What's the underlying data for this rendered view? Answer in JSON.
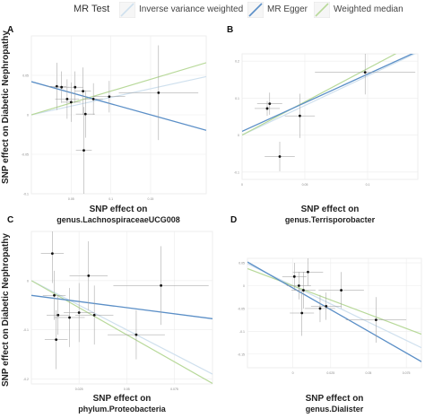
{
  "legend": {
    "title": "MR Test",
    "items": [
      {
        "label": "Inverse variance weighted",
        "color": "#cfe0ee"
      },
      {
        "label": "MR Egger",
        "color": "#5b8fc7"
      },
      {
        "label": "Weighted median",
        "color": "#b8d99a"
      }
    ]
  },
  "y_axis_label": "SNP effect on Diabetic Nephropathy",
  "chart_data": [
    {
      "panel": "A",
      "type": "scatter",
      "xlabel": "SNP effect on\ngenus.LachnospiraceaeUCG008",
      "ylabel": "SNP effect on Diabetic Nephropathy",
      "xlim": [
        0,
        0.22
      ],
      "ylim": [
        -0.1,
        0.1
      ],
      "xticks": [
        0.05,
        0.1,
        0.15
      ],
      "yticks": [
        -0.1,
        -0.05,
        0,
        0.05
      ],
      "grid": true,
      "points": [
        {
          "x": 0.032,
          "y": 0.036,
          "xerr": 0.012,
          "yerr": 0.03
        },
        {
          "x": 0.038,
          "y": 0.035,
          "xerr": 0.01,
          "yerr": 0.02
        },
        {
          "x": 0.045,
          "y": 0.02,
          "xerr": 0.015,
          "yerr": 0.025
        },
        {
          "x": 0.05,
          "y": 0.016,
          "xerr": 0.012,
          "yerr": 0.025
        },
        {
          "x": 0.055,
          "y": 0.035,
          "xerr": 0.01,
          "yerr": 0.02
        },
        {
          "x": 0.065,
          "y": 0.03,
          "xerr": 0.01,
          "yerr": 0.03
        },
        {
          "x": 0.068,
          "y": 0.001,
          "xerr": 0.012,
          "yerr": 0.03
        },
        {
          "x": 0.066,
          "y": -0.045,
          "xerr": 0.01,
          "yerr": 0.055
        },
        {
          "x": 0.078,
          "y": 0.02,
          "xerr": 0.012,
          "yerr": 0.02
        },
        {
          "x": 0.098,
          "y": 0.023,
          "xerr": 0.02,
          "yerr": 0.02
        },
        {
          "x": 0.16,
          "y": 0.028,
          "xerr": 0.05,
          "yerr": 0.06
        }
      ],
      "lines": {
        "ivw": {
          "intercept": 0.0,
          "slope": 0.22
        },
        "egger": {
          "intercept": 0.042,
          "slope": -0.28
        },
        "median": {
          "intercept": 0.0,
          "slope": 0.3
        }
      }
    },
    {
      "panel": "B",
      "type": "scatter",
      "xlabel": "SNP effect on\ngenus.Terrisporobacter",
      "ylabel": "",
      "xlim": [
        0,
        0.14
      ],
      "ylim": [
        -0.12,
        0.22
      ],
      "xticks": [
        0,
        0.05,
        0.1
      ],
      "yticks": [
        -0.1,
        0,
        0.1,
        0.2
      ],
      "grid": true,
      "points": [
        {
          "x": 0.022,
          "y": 0.085,
          "xerr": 0.01,
          "yerr": 0.03
        },
        {
          "x": 0.02,
          "y": 0.072,
          "xerr": 0.01,
          "yerr": 0.02
        },
        {
          "x": 0.03,
          "y": -0.058,
          "xerr": 0.012,
          "yerr": 0.04
        },
        {
          "x": 0.046,
          "y": 0.052,
          "xerr": 0.012,
          "yerr": 0.06
        },
        {
          "x": 0.098,
          "y": 0.17,
          "xerr": 0.04,
          "yerr": 0.06
        }
      ],
      "lines": {
        "ivw": {
          "intercept": 0.0,
          "slope": 1.6
        },
        "egger": {
          "intercept": 0.01,
          "slope": 1.55
        },
        "median": {
          "intercept": 0.0,
          "slope": 1.8
        }
      }
    },
    {
      "panel": "C",
      "type": "scatter",
      "xlabel": "SNP effect on\nphylum.Proteobacteria",
      "ylabel": "SNP effect on Diabetic Nephropathy",
      "xlim": [
        0,
        0.095
      ],
      "ylim": [
        -0.21,
        0.1
      ],
      "xticks": [
        0.025,
        0.05,
        0.075
      ],
      "yticks": [
        -0.2,
        -0.1,
        0
      ],
      "grid": true,
      "points": [
        {
          "x": 0.011,
          "y": 0.055,
          "xerr": 0.006,
          "yerr": 0.06
        },
        {
          "x": 0.012,
          "y": -0.03,
          "xerr": 0.006,
          "yerr": 0.05
        },
        {
          "x": 0.013,
          "y": -0.12,
          "xerr": 0.006,
          "yerr": 0.06
        },
        {
          "x": 0.014,
          "y": -0.07,
          "xerr": 0.006,
          "yerr": 0.04
        },
        {
          "x": 0.02,
          "y": -0.075,
          "xerr": 0.008,
          "yerr": 0.06
        },
        {
          "x": 0.025,
          "y": -0.065,
          "xerr": 0.008,
          "yerr": 0.06
        },
        {
          "x": 0.03,
          "y": 0.01,
          "xerr": 0.01,
          "yerr": 0.07
        },
        {
          "x": 0.033,
          "y": -0.07,
          "xerr": 0.01,
          "yerr": 0.06
        },
        {
          "x": 0.055,
          "y": -0.11,
          "xerr": 0.015,
          "yerr": 0.05
        },
        {
          "x": 0.068,
          "y": -0.01,
          "xerr": 0.025,
          "yerr": 0.08
        }
      ],
      "lines": {
        "ivw": {
          "intercept": 0.0,
          "slope": -2.0
        },
        "egger": {
          "intercept": -0.03,
          "slope": -0.5
        },
        "median": {
          "intercept": 0.0,
          "slope": -2.2
        }
      }
    },
    {
      "panel": "D",
      "type": "scatter",
      "xlabel": "SNP effect on\ngenus.Dialister",
      "ylabel": "",
      "xlim": [
        -0.03,
        0.085
      ],
      "ylim": [
        -0.18,
        0.06
      ],
      "xticks": [
        0,
        0.025,
        0.05,
        0.075
      ],
      "yticks": [
        -0.15,
        -0.1,
        -0.05,
        0,
        0.05
      ],
      "grid": true,
      "points": [
        {
          "x": 0.001,
          "y": 0.02,
          "xerr": 0.008,
          "yerr": 0.03
        },
        {
          "x": 0.004,
          "y": 0.0,
          "xerr": 0.008,
          "yerr": 0.03
        },
        {
          "x": 0.007,
          "y": -0.01,
          "xerr": 0.008,
          "yerr": 0.04
        },
        {
          "x": 0.01,
          "y": 0.03,
          "xerr": 0.01,
          "yerr": 0.03
        },
        {
          "x": 0.006,
          "y": -0.06,
          "xerr": 0.008,
          "yerr": 0.05
        },
        {
          "x": 0.018,
          "y": -0.05,
          "xerr": 0.01,
          "yerr": 0.03
        },
        {
          "x": 0.022,
          "y": -0.045,
          "xerr": 0.01,
          "yerr": 0.03
        },
        {
          "x": 0.032,
          "y": -0.01,
          "xerr": 0.015,
          "yerr": 0.04
        },
        {
          "x": 0.055,
          "y": -0.075,
          "xerr": 0.02,
          "yerr": 0.05
        }
      ],
      "lines": {
        "ivw": {
          "intercept": 0.0,
          "slope": -1.6
        },
        "egger": {
          "intercept": -0.005,
          "slope": -1.9
        },
        "median": {
          "intercept": 0.0,
          "slope": -1.25
        }
      }
    }
  ]
}
